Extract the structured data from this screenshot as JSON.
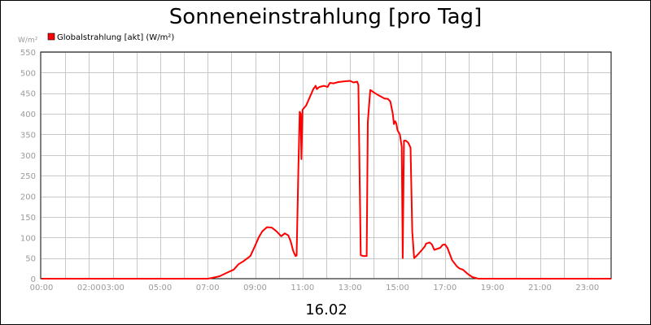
{
  "chart_data": {
    "type": "line",
    "title": "Sonneneinstrahlung [pro Tag]",
    "date_label": "16.02",
    "ylabel": "W/m²",
    "xlabel": "",
    "ylim": [
      0,
      550
    ],
    "yticks": [
      0,
      50,
      100,
      150,
      200,
      250,
      300,
      350,
      400,
      450,
      500,
      550
    ],
    "xlim": [
      0,
      24
    ],
    "xtick_labels": [
      "00:00",
      "02:00",
      "03:00",
      "05:00",
      "07:00",
      "09:00",
      "11:00",
      "13:00",
      "15:00",
      "17:00",
      "19:00",
      "21:00",
      "23:00"
    ],
    "xtick_hours": [
      0,
      2,
      3,
      5,
      7,
      9,
      11,
      13,
      15,
      17,
      19,
      21,
      23
    ],
    "grid": true,
    "legend_position": "top-left",
    "colors": {
      "series": "#ff0000",
      "grid": "#c8c8c8",
      "axis": "#000000",
      "tick_label": "#9a9a9a"
    },
    "series": [
      {
        "name": "Globalstrahlung [akt] (W/m²)",
        "points": [
          [
            0,
            0
          ],
          [
            7.0,
            0
          ],
          [
            7.2,
            2
          ],
          [
            7.5,
            6
          ],
          [
            7.8,
            14
          ],
          [
            8.1,
            22
          ],
          [
            8.3,
            35
          ],
          [
            8.5,
            42
          ],
          [
            8.8,
            55
          ],
          [
            9.0,
            80
          ],
          [
            9.15,
            100
          ],
          [
            9.3,
            115
          ],
          [
            9.5,
            125
          ],
          [
            9.7,
            124
          ],
          [
            9.9,
            115
          ],
          [
            10.1,
            103
          ],
          [
            10.25,
            110
          ],
          [
            10.4,
            105
          ],
          [
            10.5,
            90
          ],
          [
            10.6,
            68
          ],
          [
            10.7,
            55
          ],
          [
            10.75,
            56
          ],
          [
            10.82,
            260
          ],
          [
            10.88,
            405
          ],
          [
            10.92,
            400
          ],
          [
            10.95,
            290
          ],
          [
            11.0,
            410
          ],
          [
            11.15,
            420
          ],
          [
            11.3,
            440
          ],
          [
            11.45,
            460
          ],
          [
            11.55,
            468
          ],
          [
            11.6,
            460
          ],
          [
            11.7,
            465
          ],
          [
            11.9,
            468
          ],
          [
            12.05,
            465
          ],
          [
            12.15,
            475
          ],
          [
            12.3,
            474
          ],
          [
            12.5,
            477
          ],
          [
            12.8,
            479
          ],
          [
            13.0,
            480
          ],
          [
            13.15,
            476
          ],
          [
            13.3,
            478
          ],
          [
            13.35,
            470
          ],
          [
            13.45,
            57
          ],
          [
            13.55,
            55
          ],
          [
            13.7,
            55
          ],
          [
            13.75,
            380
          ],
          [
            13.85,
            458
          ],
          [
            14.0,
            452
          ],
          [
            14.2,
            445
          ],
          [
            14.45,
            437
          ],
          [
            14.6,
            436
          ],
          [
            14.7,
            430
          ],
          [
            14.8,
            400
          ],
          [
            14.85,
            375
          ],
          [
            14.9,
            382
          ],
          [
            14.95,
            377
          ],
          [
            15.0,
            360
          ],
          [
            15.1,
            350
          ],
          [
            15.18,
            320
          ],
          [
            15.22,
            50
          ],
          [
            15.27,
            335
          ],
          [
            15.35,
            335
          ],
          [
            15.45,
            330
          ],
          [
            15.55,
            318
          ],
          [
            15.62,
            115
          ],
          [
            15.7,
            50
          ],
          [
            15.8,
            55
          ],
          [
            16.0,
            68
          ],
          [
            16.15,
            78
          ],
          [
            16.2,
            85
          ],
          [
            16.35,
            88
          ],
          [
            16.45,
            83
          ],
          [
            16.55,
            70
          ],
          [
            16.65,
            72
          ],
          [
            16.8,
            75
          ],
          [
            16.9,
            82
          ],
          [
            17.0,
            83
          ],
          [
            17.1,
            75
          ],
          [
            17.2,
            60
          ],
          [
            17.3,
            45
          ],
          [
            17.5,
            30
          ],
          [
            17.6,
            25
          ],
          [
            17.75,
            22
          ],
          [
            17.95,
            12
          ],
          [
            18.15,
            4
          ],
          [
            18.4,
            0
          ],
          [
            24,
            0
          ]
        ]
      }
    ]
  }
}
